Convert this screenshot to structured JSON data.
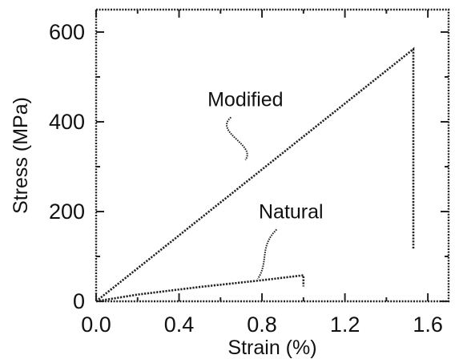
{
  "chart_data": {
    "type": "line",
    "title": "",
    "xlabel": "Strain (%)",
    "ylabel": "Stress (MPa)",
    "xlim": [
      0,
      1.7
    ],
    "ylim": [
      0,
      650
    ],
    "x_ticks": [
      0.0,
      0.4,
      0.8,
      1.2,
      1.6
    ],
    "x_tick_labels": [
      "0.0",
      "0.4",
      "0.8",
      "1.2",
      "1.6"
    ],
    "y_ticks": [
      0,
      200,
      400,
      600
    ],
    "y_tick_labels": [
      "0",
      "200",
      "400",
      "600"
    ],
    "grid": false,
    "legend": "none",
    "series": [
      {
        "name": "Modified",
        "x": [
          0.0,
          1.53,
          1.53
        ],
        "y": [
          0,
          562,
          115
        ]
      },
      {
        "name": "Natural",
        "x": [
          0.0,
          0.2,
          0.5,
          0.8,
          1.0,
          1.0
        ],
        "y": [
          0,
          15,
          32,
          47,
          58,
          33
        ]
      }
    ],
    "annotations": [
      {
        "series": "Modified",
        "text": "Modified",
        "label_x": 0.72,
        "label_y": 435,
        "target_x": 0.72,
        "target_y": 315
      },
      {
        "series": "Natural",
        "text": "Natural",
        "label_x": 0.94,
        "label_y": 185,
        "target_x": 0.78,
        "target_y": 50
      }
    ]
  }
}
